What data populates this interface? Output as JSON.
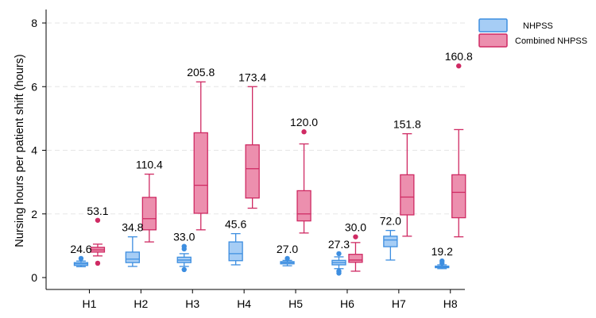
{
  "chart_data": {
    "type": "boxplot",
    "title": "",
    "xlabel": "",
    "ylabel": "Nursing hours per patient shift (hours)",
    "ylim": [
      0,
      8
    ],
    "yticks": [
      0,
      2,
      4,
      6,
      8
    ],
    "grid": true,
    "legend_position": "top-right",
    "categories": [
      "H1",
      "H2",
      "H3",
      "H4",
      "H5",
      "H6",
      "H7",
      "H8"
    ],
    "series": [
      {
        "name": "NHPSS",
        "color": "#3d8ee0",
        "fill": "#a6cdf5",
        "boxes": [
          {
            "category": "H1",
            "min": 0.34,
            "q1": 0.38,
            "median": 0.43,
            "q3": 0.47,
            "max": 0.52,
            "outliers": [
              0.6
            ],
            "label": "24.6"
          },
          {
            "category": "H2",
            "min": 0.35,
            "q1": 0.47,
            "median": 0.58,
            "q3": 0.8,
            "max": 1.28,
            "outliers": [],
            "label": "34.8"
          },
          {
            "category": "H3",
            "min": 0.35,
            "q1": 0.47,
            "median": 0.55,
            "q3": 0.64,
            "max": 0.75,
            "outliers": [
              0.9,
              0.98,
              0.25
            ],
            "label": "33.0"
          },
          {
            "category": "H4",
            "min": 0.4,
            "q1": 0.53,
            "median": 0.75,
            "q3": 1.12,
            "max": 1.38,
            "outliers": [],
            "label": "45.6"
          },
          {
            "category": "H5",
            "min": 0.37,
            "q1": 0.43,
            "median": 0.47,
            "q3": 0.5,
            "max": 0.54,
            "outliers": [
              0.6
            ],
            "label": "27.0"
          },
          {
            "category": "H6",
            "min": 0.28,
            "q1": 0.4,
            "median": 0.47,
            "q3": 0.54,
            "max": 0.65,
            "outliers": [
              0.75,
              0.2,
              0.14
            ],
            "label": "27.3"
          },
          {
            "category": "H7",
            "min": 0.55,
            "q1": 0.97,
            "median": 1.18,
            "q3": 1.3,
            "max": 1.48,
            "outliers": [],
            "label": "72.0"
          },
          {
            "category": "H8",
            "min": 0.28,
            "q1": 0.31,
            "median": 0.33,
            "q3": 0.36,
            "max": 0.4,
            "outliers": [
              0.45,
              0.52
            ],
            "label": "19.2"
          }
        ]
      },
      {
        "name": "Combined NHPSS",
        "color": "#cf2a63",
        "fill": "#ec8fae",
        "boxes": [
          {
            "category": "H1",
            "min": 0.68,
            "q1": 0.8,
            "median": 0.87,
            "q3": 0.95,
            "max": 1.05,
            "outliers": [
              1.8,
              0.45
            ],
            "label": "53.1"
          },
          {
            "category": "H2",
            "min": 1.12,
            "q1": 1.5,
            "median": 1.85,
            "q3": 2.52,
            "max": 3.25,
            "outliers": [],
            "label": "110.4"
          },
          {
            "category": "H3",
            "min": 1.5,
            "q1": 2.02,
            "median": 2.9,
            "q3": 4.55,
            "max": 6.15,
            "outliers": [],
            "label": "205.8"
          },
          {
            "category": "H4",
            "min": 2.18,
            "q1": 2.5,
            "median": 3.42,
            "q3": 4.17,
            "max": 6.0,
            "outliers": [],
            "label": "173.4"
          },
          {
            "category": "H5",
            "min": 1.4,
            "q1": 1.78,
            "median": 2.0,
            "q3": 2.73,
            "max": 4.2,
            "outliers": [
              4.58
            ],
            "label": "120.0"
          },
          {
            "category": "H6",
            "min": 0.2,
            "q1": 0.48,
            "median": 0.55,
            "q3": 0.73,
            "max": 1.1,
            "outliers": [
              1.28
            ],
            "label": "30.0"
          },
          {
            "category": "H7",
            "min": 1.3,
            "q1": 1.97,
            "median": 2.53,
            "q3": 3.23,
            "max": 4.52,
            "outliers": [],
            "label": "151.8"
          },
          {
            "category": "H8",
            "min": 1.28,
            "q1": 1.88,
            "median": 2.68,
            "q3": 3.23,
            "max": 4.65,
            "outliers": [
              6.65
            ],
            "label": "160.8"
          }
        ]
      }
    ]
  }
}
